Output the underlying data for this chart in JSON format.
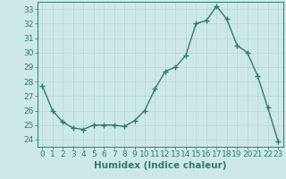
{
  "x": [
    0,
    1,
    2,
    3,
    4,
    5,
    6,
    7,
    8,
    9,
    10,
    11,
    12,
    13,
    14,
    15,
    16,
    17,
    18,
    19,
    20,
    21,
    22,
    23
  ],
  "y": [
    27.7,
    26.0,
    25.2,
    24.8,
    24.7,
    25.0,
    25.0,
    25.0,
    24.9,
    25.3,
    26.0,
    27.5,
    28.7,
    29.0,
    29.8,
    32.0,
    32.2,
    33.2,
    32.3,
    30.5,
    30.0,
    28.4,
    26.2,
    23.9
  ],
  "line_color": "#2e7d6e",
  "marker": "+",
  "marker_size": 4,
  "bg_color": "#cce8e8",
  "grid_color": "#b8d4d4",
  "xlabel": "Humidex (Indice chaleur)",
  "ylabel": "",
  "xlim": [
    -0.5,
    23.5
  ],
  "ylim": [
    23.5,
    33.5
  ],
  "yticks": [
    24,
    25,
    26,
    27,
    28,
    29,
    30,
    31,
    32,
    33
  ],
  "xticks": [
    0,
    1,
    2,
    3,
    4,
    5,
    6,
    7,
    8,
    9,
    10,
    11,
    12,
    13,
    14,
    15,
    16,
    17,
    18,
    19,
    20,
    21,
    22,
    23
  ],
  "tick_color": "#2e7d6e",
  "tick_label_color": "#2e7d6e",
  "xlabel_color": "#2e7d6e",
  "xlabel_fontsize": 7.5,
  "tick_fontsize": 6.5,
  "line_width": 1.0
}
